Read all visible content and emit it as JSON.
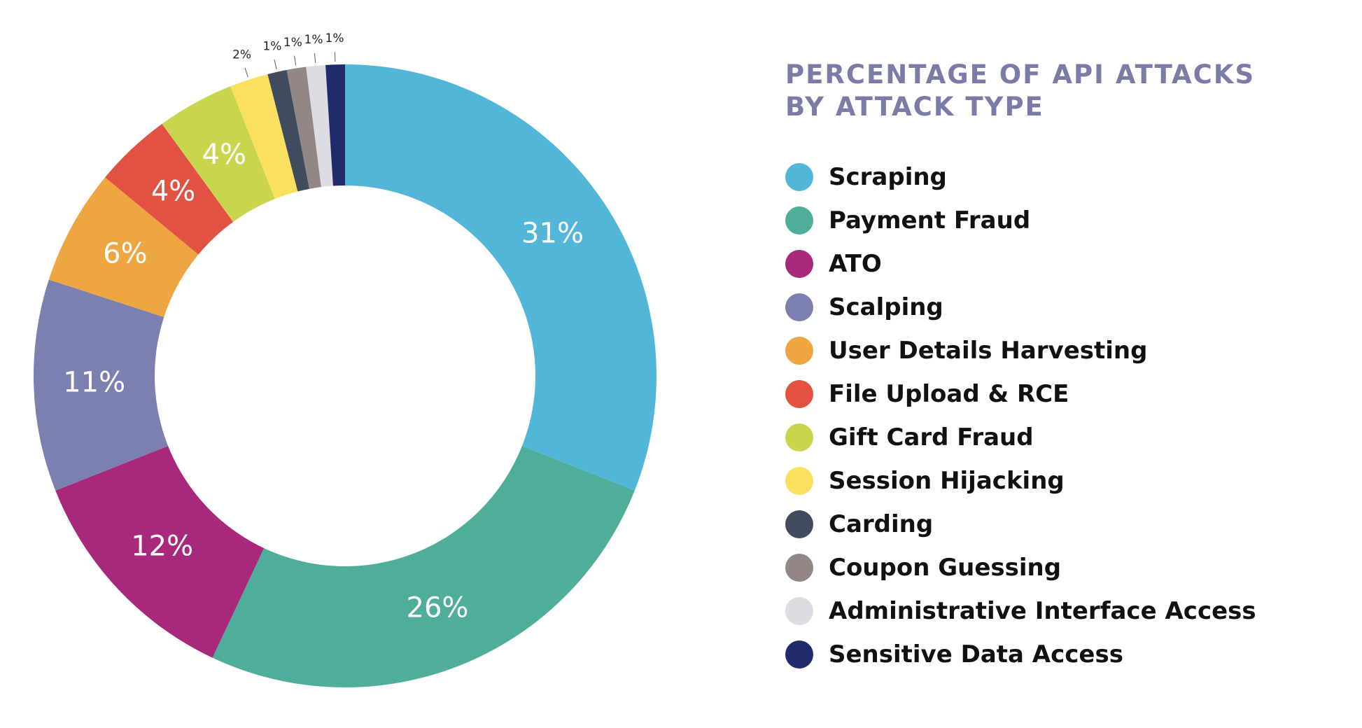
{
  "chart_data": {
    "type": "pie",
    "variant": "donut",
    "title_lines": [
      "PERCENTAGE OF API ATTACKS",
      "BY ATTACK TYPE"
    ],
    "categories": [
      "Scraping",
      "Payment Fraud",
      "ATO",
      "Scalping",
      "User Details Harvesting",
      "File Upload & RCE",
      "Gift Card Fraud",
      "Session Hijacking",
      "Carding",
      "Coupon Guessing",
      "Administrative Interface Access",
      "Sensitive Data Access"
    ],
    "values": [
      31,
      26,
      12,
      11,
      6,
      4,
      4,
      2,
      1,
      1,
      1,
      1
    ],
    "data_labels": [
      "31%",
      "26%",
      "12%",
      "11%",
      "6%",
      "4%",
      "4%",
      "2%",
      "1%",
      "1%",
      "1%",
      "1%"
    ],
    "colors": [
      "#52b6d9",
      "#4fae99",
      "#a8297b",
      "#7b80b0",
      "#eea642",
      "#e25243",
      "#c9d64d",
      "#fae05e",
      "#404b5e",
      "#928784",
      "#dcdce2",
      "#212a6a"
    ],
    "start": "top, clockwise",
    "legend_position": "right"
  }
}
